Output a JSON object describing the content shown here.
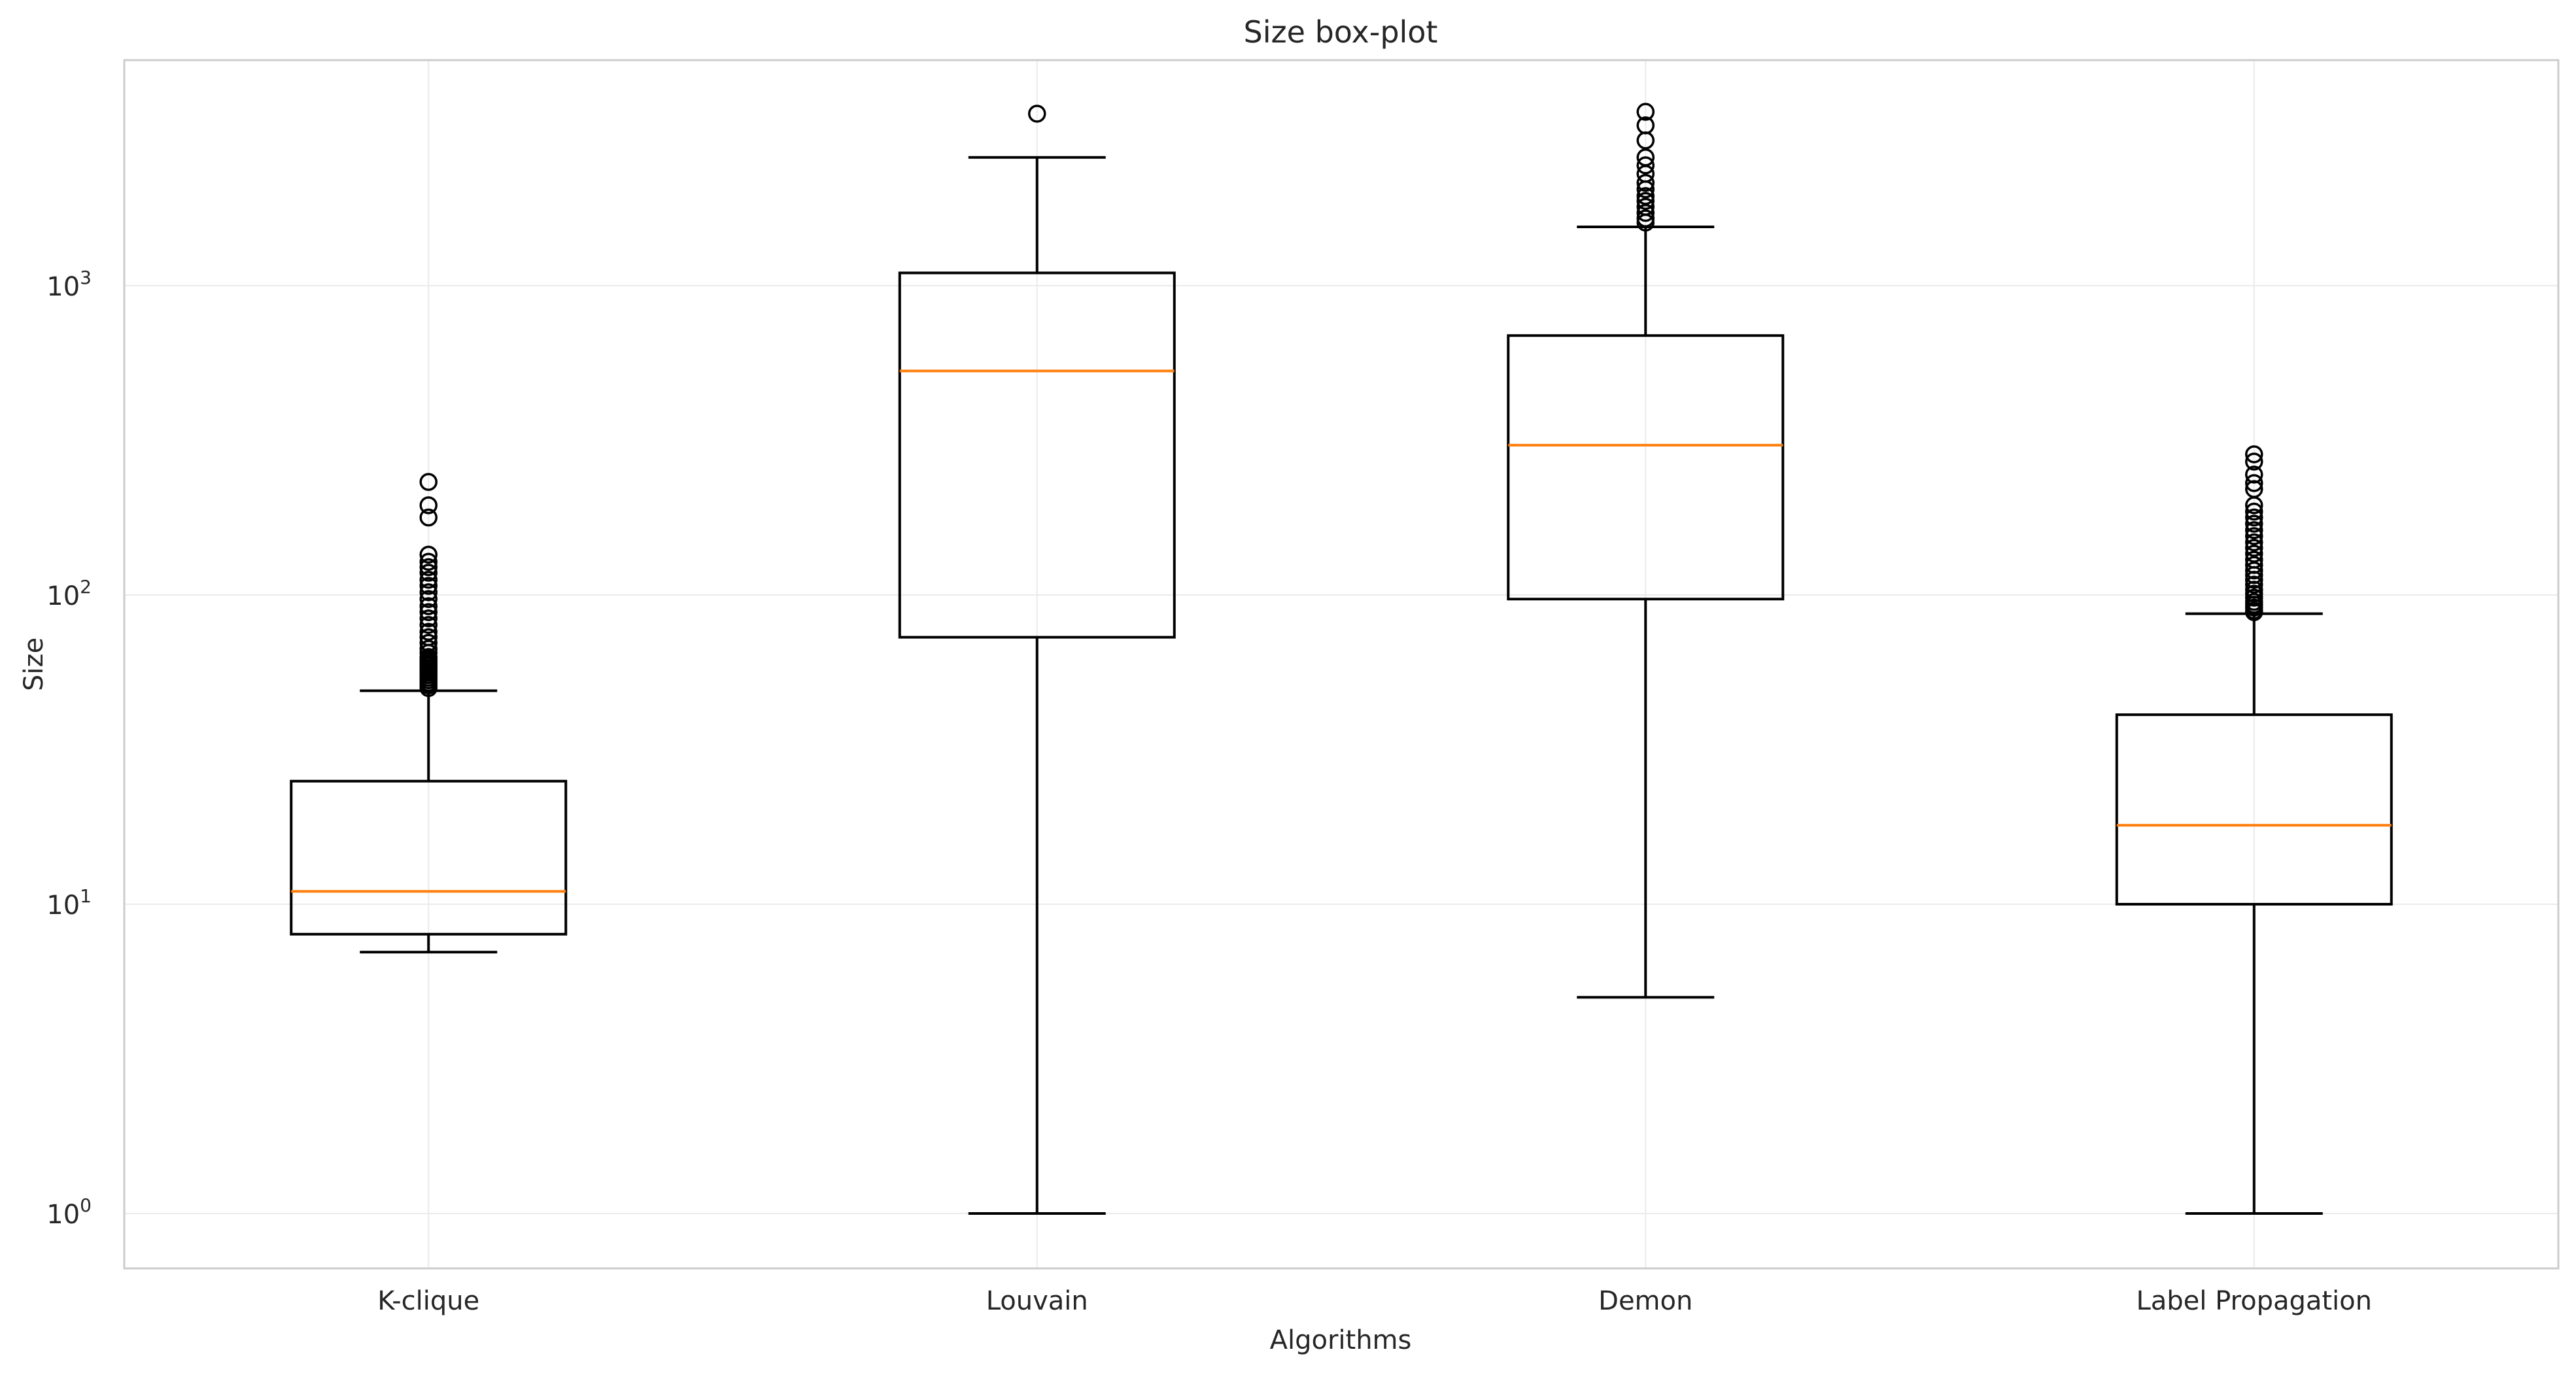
{
  "chart_data": {
    "type": "boxplot",
    "title": "Size box-plot",
    "xlabel": "Algorithms",
    "ylabel": "Size",
    "yscale": "log",
    "ylim": [
      0.68,
      5500
    ],
    "yticks": [
      {
        "value": 1,
        "base": "10",
        "exp": "0"
      },
      {
        "value": 10,
        "base": "10",
        "exp": "1"
      },
      {
        "value": 100,
        "base": "10",
        "exp": "2"
      },
      {
        "value": 1000,
        "base": "10",
        "exp": "3"
      }
    ],
    "grid": true,
    "colors": {
      "box": "#000000",
      "median": "#ff7f0e",
      "grid": "#ebebeb",
      "spine": "#cccccc"
    },
    "categories": [
      "K-clique",
      "Louvain",
      "Demon",
      "Label Propagation"
    ],
    "boxes": [
      {
        "label": "K-clique",
        "whisker_low": 7,
        "q1": 8,
        "median": 11,
        "q3": 25,
        "whisker_high": 49,
        "outliers": [
          50,
          51,
          52,
          53,
          54,
          55,
          56,
          57,
          58,
          59,
          60,
          61,
          62,
          63,
          65,
          67,
          70,
          73,
          76,
          80,
          84,
          88,
          92,
          97,
          102,
          107,
          112,
          118,
          123,
          128,
          135,
          178,
          195,
          232
        ]
      },
      {
        "label": "Louvain",
        "whisker_low": 1,
        "q1": 73,
        "median": 530,
        "q3": 1100,
        "whisker_high": 2600,
        "outliers": [
          3600
        ]
      },
      {
        "label": "Demon",
        "whisker_low": 5,
        "q1": 97,
        "median": 305,
        "q3": 690,
        "whisker_high": 1550,
        "outliers": [
          1600,
          1650,
          1720,
          1800,
          1880,
          1950,
          2050,
          2150,
          2300,
          2450,
          2600,
          2950,
          3300,
          3650
        ]
      },
      {
        "label": "Label Propagation",
        "whisker_low": 1,
        "q1": 10,
        "median": 18,
        "q3": 41,
        "whisker_high": 87,
        "outliers": [
          88,
          89,
          91,
          93,
          95,
          98,
          101,
          104,
          108,
          112,
          116,
          120,
          125,
          130,
          136,
          142,
          148,
          155,
          162,
          170,
          178,
          186,
          195,
          220,
          230,
          245,
          270,
          285
        ]
      }
    ]
  }
}
